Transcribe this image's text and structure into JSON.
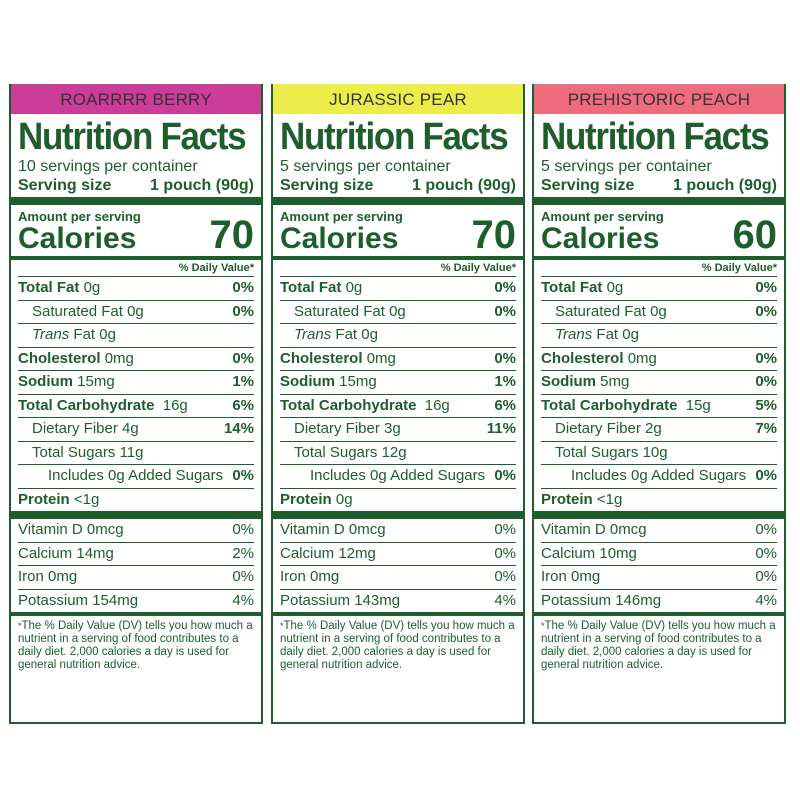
{
  "dv_heading": "% Daily Value*",
  "footnote": "The % Daily Value (DV) tells you how much a nutrient in a serving of food contributes to a daily diet. 2,000 calories a day is used for general nutrition advice.",
  "panel_title": "Nutrition Facts",
  "amount_per_serving": "Amount per serving",
  "calories_label": "Calories",
  "labels": {
    "total_fat": "Total Fat",
    "saturated_fat": "Saturated Fat",
    "trans_fat_italic": "Trans",
    "trans_fat_rest": " Fat",
    "cholesterol": "Cholesterol",
    "sodium": "Sodium",
    "total_carb": "Total Carbohydrate",
    "dietary_fiber": "Dietary Fiber",
    "total_sugars": "Total Sugars",
    "includes_prefix": "Includes ",
    "includes_suffix": " Added Sugars",
    "protein": "Protein",
    "vitamin_d": "Vitamin D",
    "calcium": "Calcium",
    "iron": "Iron",
    "potassium": "Potassium"
  },
  "colors": {
    "berry": "#cc3d9a",
    "pear": "#ecec4b",
    "peach": "#ef6c7f",
    "text": "#1d5e2c"
  },
  "panels": [
    {
      "flavor": "ROARRRR BERRY",
      "servings": "10 servings per container",
      "serving_size_label": "Serving size",
      "serving_size_value": "1 pouch (90g)",
      "calories": "70",
      "total_fat": "0g",
      "total_fat_dv": "0%",
      "saturated_fat": "0g",
      "saturated_fat_dv": "0%",
      "trans_fat": "0g",
      "cholesterol": "0mg",
      "cholesterol_dv": "0%",
      "sodium": "15mg",
      "sodium_dv": "1%",
      "total_carb": "16g",
      "total_carb_dv": "6%",
      "dietary_fiber": "4g",
      "dietary_fiber_dv": "14%",
      "total_sugars": "11g",
      "added_sugars": "0g",
      "added_sugars_dv": "0%",
      "protein": "<1g",
      "vitamin_d": "0mcg",
      "vitamin_d_dv": "0%",
      "calcium": "14mg",
      "calcium_dv": "2%",
      "iron": "0mg",
      "iron_dv": "0%",
      "potassium": "154mg",
      "potassium_dv": "4%"
    },
    {
      "flavor": "JURASSIC PEAR",
      "servings": "5 servings per container",
      "serving_size_label": "Serving size",
      "serving_size_value": "1 pouch (90g)",
      "calories": "70",
      "total_fat": "0g",
      "total_fat_dv": "0%",
      "saturated_fat": "0g",
      "saturated_fat_dv": "0%",
      "trans_fat": "0g",
      "cholesterol": "0mg",
      "cholesterol_dv": "0%",
      "sodium": "15mg",
      "sodium_dv": "1%",
      "total_carb": "16g",
      "total_carb_dv": "6%",
      "dietary_fiber": "3g",
      "dietary_fiber_dv": "11%",
      "total_sugars": "12g",
      "added_sugars": "0g",
      "added_sugars_dv": "0%",
      "protein": "0g",
      "vitamin_d": "0mcg",
      "vitamin_d_dv": "0%",
      "calcium": "12mg",
      "calcium_dv": "0%",
      "iron": "0mg",
      "iron_dv": "0%",
      "potassium": "143mg",
      "potassium_dv": "4%"
    },
    {
      "flavor": "PREHISTORIC PEACH",
      "servings": "5 servings per container",
      "serving_size_label": "Serving size",
      "serving_size_value": "1 pouch (90g)",
      "calories": "60",
      "total_fat": "0g",
      "total_fat_dv": "0%",
      "saturated_fat": "0g",
      "saturated_fat_dv": "0%",
      "trans_fat": "0g",
      "cholesterol": "0mg",
      "cholesterol_dv": "0%",
      "sodium": "5mg",
      "sodium_dv": "0%",
      "total_carb": "15g",
      "total_carb_dv": "5%",
      "dietary_fiber": "2g",
      "dietary_fiber_dv": "7%",
      "total_sugars": "10g",
      "added_sugars": "0g",
      "added_sugars_dv": "0%",
      "protein": "<1g",
      "vitamin_d": "0mcg",
      "vitamin_d_dv": "0%",
      "calcium": "10mg",
      "calcium_dv": "0%",
      "iron": "0mg",
      "iron_dv": "0%",
      "potassium": "146mg",
      "potassium_dv": "4%"
    }
  ]
}
